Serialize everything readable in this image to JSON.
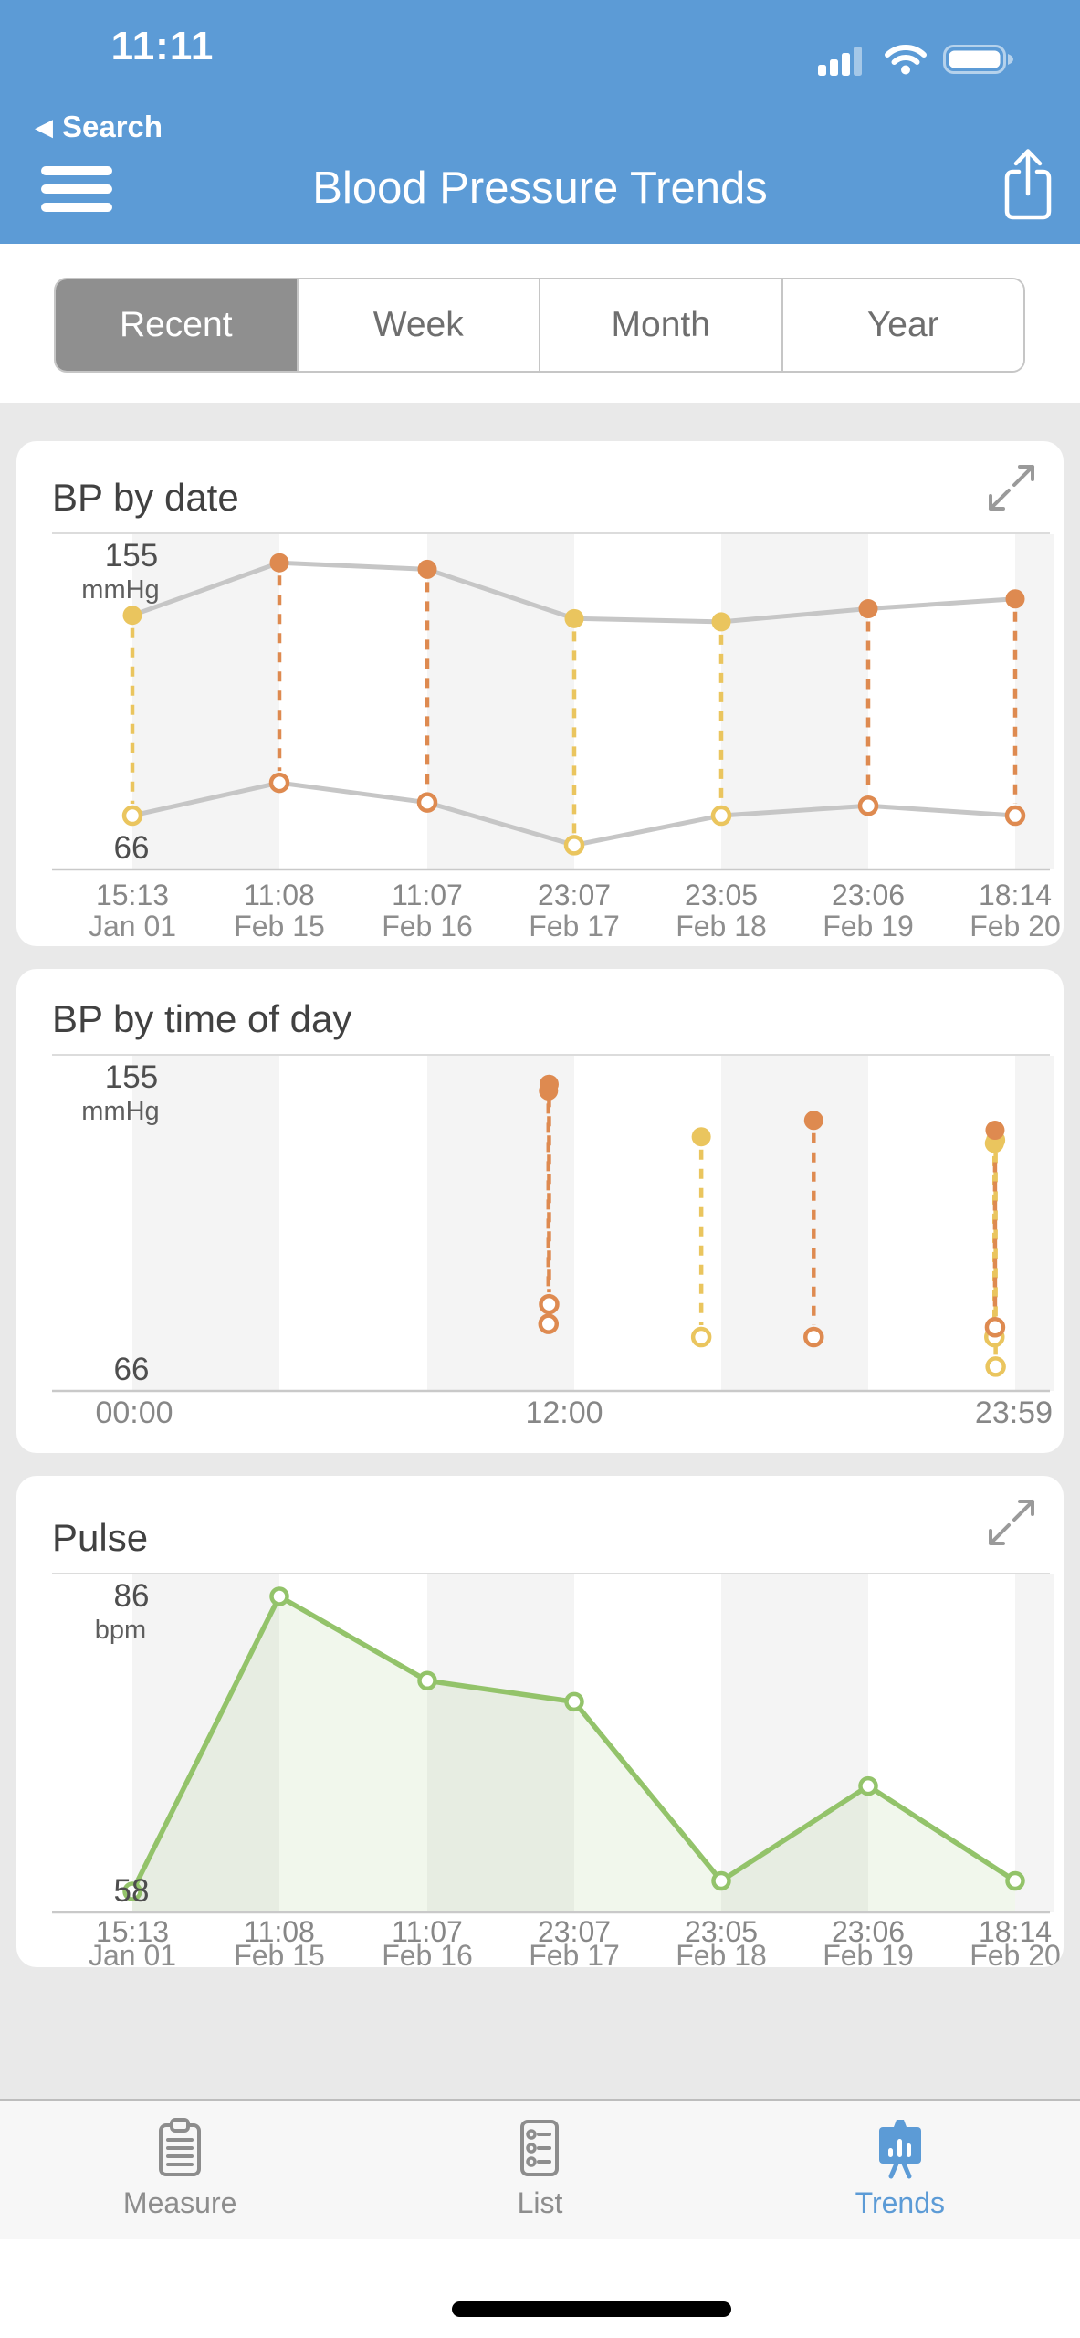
{
  "status_bar": {
    "time": "11:11",
    "back_button": "Search"
  },
  "header": {
    "title": "Blood Pressure Trends"
  },
  "segmented_control": {
    "options": [
      "Recent",
      "Week",
      "Month",
      "Year"
    ],
    "selected": "Recent"
  },
  "colors": {
    "header_blue": "#5C9BD6",
    "selected_segment_gray": "#8F8F8F",
    "orange": "#DE8A50",
    "yellow": "#EAC55E",
    "green": "#93C36A",
    "connector_gray": "#C6C6C6",
    "stripe_gray": "#F4F4F4",
    "axis_gray": "#C9C9C9",
    "active_tab_blue": "#5C9BD6"
  },
  "chart_data": [
    {
      "type": "scatter",
      "title": "BP by date",
      "ylabel": "mmHg",
      "ylim": [
        66,
        155
      ],
      "yticks": [
        155,
        66
      ],
      "categories_time": [
        "15:13",
        "11:08",
        "11:07",
        "23:07",
        "23:05",
        "23:06",
        "18:14"
      ],
      "categories_date": [
        "Jan 01",
        "Feb 15",
        "Feb 16",
        "Feb 17",
        "Feb 18",
        "Feb 19",
        "Feb 20"
      ],
      "series": [
        {
          "name": "systolic",
          "values": [
            137,
            153,
            151,
            136,
            135,
            139,
            142
          ]
        },
        {
          "name": "diastolic",
          "values": [
            76,
            86,
            80,
            67,
            76,
            79,
            76
          ]
        }
      ],
      "point_colors": [
        "yellow",
        "orange",
        "orange",
        "yellow",
        "yellow",
        "orange",
        "orange"
      ],
      "grid_stripes": true,
      "has_expand_icon": true
    },
    {
      "type": "scatter",
      "title": "BP by time of day",
      "ylabel": "mmHg",
      "ylim": [
        66,
        155
      ],
      "yticks": [
        155,
        66
      ],
      "xticks": [
        "00:00",
        "12:00",
        "23:59"
      ],
      "xlim_minutes": [
        0,
        1439
      ],
      "points": [
        {
          "time": "15:13",
          "minutes": 913,
          "systolic": 137,
          "diastolic": 76,
          "color": "yellow"
        },
        {
          "time": "11:08",
          "minutes": 668,
          "systolic": 153,
          "diastolic": 86,
          "color": "orange"
        },
        {
          "time": "11:07",
          "minutes": 667,
          "systolic": 151,
          "diastolic": 80,
          "color": "orange"
        },
        {
          "time": "23:07",
          "minutes": 1387,
          "systolic": 136,
          "diastolic": 67,
          "color": "yellow"
        },
        {
          "time": "23:05",
          "minutes": 1385,
          "systolic": 135,
          "diastolic": 76,
          "color": "yellow"
        },
        {
          "time": "23:06",
          "minutes": 1386,
          "systolic": 139,
          "diastolic": 79,
          "color": "orange"
        },
        {
          "time": "18:14",
          "minutes": 1094,
          "systolic": 142,
          "diastolic": 76,
          "color": "orange"
        }
      ],
      "grid_stripes": true,
      "has_expand_icon": false
    },
    {
      "type": "line",
      "title": "Pulse",
      "ylabel": "bpm",
      "ylim": [
        58,
        86
      ],
      "yticks": [
        86,
        58
      ],
      "categories_time": [
        "15:13",
        "11:08",
        "11:07",
        "23:07",
        "23:05",
        "23:06",
        "18:14"
      ],
      "categories_date": [
        "Jan 01",
        "Feb 15",
        "Feb 16",
        "Feb 17",
        "Feb 18",
        "Feb 19",
        "Feb 20"
      ],
      "values": [
        58,
        86,
        78,
        76,
        59,
        68,
        59
      ],
      "grid_stripes": true,
      "has_expand_icon": true
    }
  ],
  "tab_bar": {
    "items": [
      {
        "label": "Measure",
        "active": false
      },
      {
        "label": "List",
        "active": false
      },
      {
        "label": "Trends",
        "active": true
      }
    ]
  }
}
